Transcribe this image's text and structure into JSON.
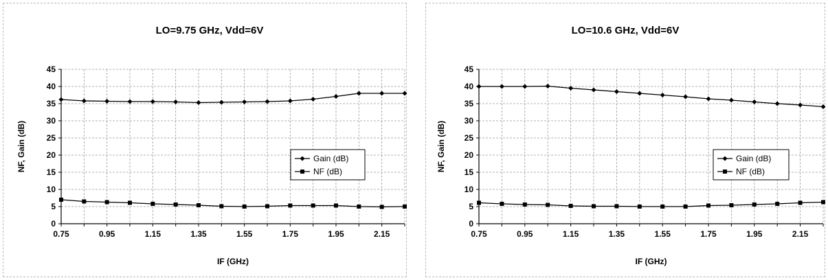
{
  "chart_data": [
    {
      "type": "line",
      "title": "LO=9.75 GHz, Vdd=6V",
      "xlabel": "IF (GHz)",
      "ylabel": "NF, Gain (dB)",
      "x": [
        0.75,
        0.85,
        0.95,
        1.05,
        1.15,
        1.25,
        1.35,
        1.45,
        1.55,
        1.65,
        1.75,
        1.85,
        1.95,
        2.05,
        2.15,
        2.25
      ],
      "xticks": [
        "0.75",
        "0.95",
        "1.15",
        "1.35",
        "1.55",
        "1.75",
        "1.95",
        "2.15"
      ],
      "xlim": [
        0.75,
        2.25
      ],
      "ylim": [
        0,
        45
      ],
      "yticks": [
        "0",
        "5",
        "10",
        "15",
        "20",
        "25",
        "30",
        "35",
        "40",
        "45"
      ],
      "grid": true,
      "legend_position": "right",
      "series": [
        {
          "name": "Gain (dB)",
          "marker": "diamond",
          "values": [
            36.2,
            35.8,
            35.7,
            35.6,
            35.6,
            35.5,
            35.3,
            35.4,
            35.5,
            35.6,
            35.8,
            36.3,
            37.1,
            38.0,
            38.0,
            38.0
          ]
        },
        {
          "name": "NF (dB)",
          "marker": "square",
          "values": [
            7.0,
            6.5,
            6.3,
            6.1,
            5.8,
            5.6,
            5.4,
            5.1,
            5.0,
            5.1,
            5.3,
            5.3,
            5.3,
            5.0,
            4.9,
            5.0
          ]
        }
      ]
    },
    {
      "type": "line",
      "title": "LO=10.6 GHz, Vdd=6V",
      "xlabel": "IF (GHz)",
      "ylabel": "NF, Gain (dB)",
      "x": [
        0.75,
        0.85,
        0.95,
        1.05,
        1.15,
        1.25,
        1.35,
        1.45,
        1.55,
        1.65,
        1.75,
        1.85,
        1.95,
        2.05,
        2.15,
        2.25
      ],
      "xticks": [
        "0.75",
        "0.95",
        "1.15",
        "1.35",
        "1.55",
        "1.75",
        "1.95",
        "2.15"
      ],
      "xlim": [
        0.75,
        2.25
      ],
      "ylim": [
        0,
        45
      ],
      "yticks": [
        "0",
        "5",
        "10",
        "15",
        "20",
        "25",
        "30",
        "35",
        "40",
        "45"
      ],
      "grid": true,
      "legend_position": "right",
      "series": [
        {
          "name": "Gain (dB)",
          "marker": "diamond",
          "values": [
            40.0,
            40.0,
            40.0,
            40.1,
            39.5,
            39.0,
            38.5,
            38.0,
            37.5,
            37.0,
            36.4,
            36.0,
            35.5,
            35.0,
            34.6,
            34.1
          ]
        },
        {
          "name": "NF (dB)",
          "marker": "square",
          "values": [
            6.1,
            5.8,
            5.6,
            5.5,
            5.2,
            5.1,
            5.1,
            5.0,
            5.0,
            5.0,
            5.3,
            5.4,
            5.6,
            5.8,
            6.1,
            6.3
          ]
        }
      ]
    }
  ]
}
